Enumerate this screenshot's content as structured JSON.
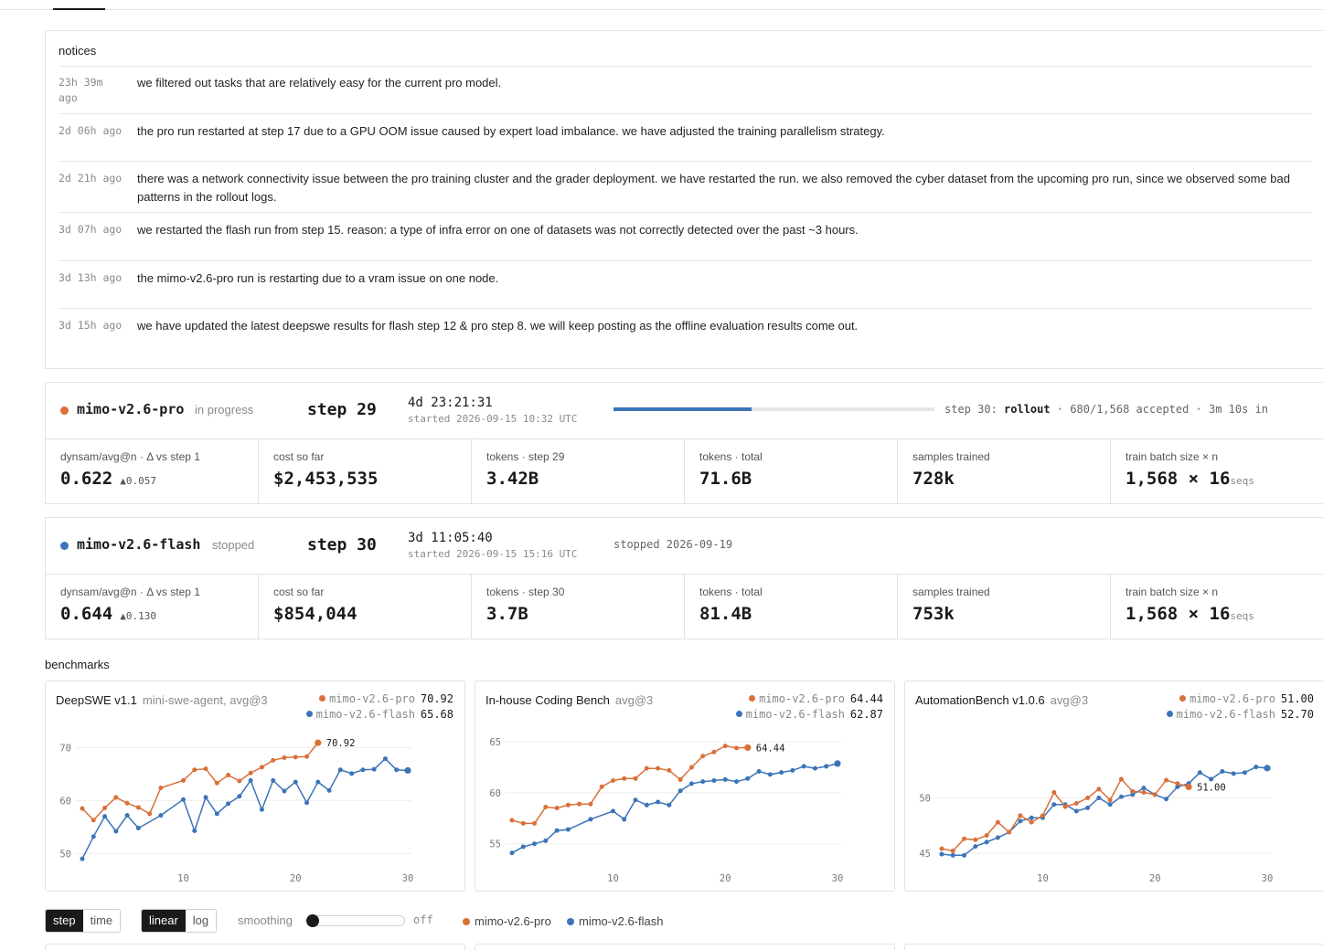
{
  "colors": {
    "pro": "#d9703a",
    "flash": "#3b74b8",
    "border": "#e2e2e2"
  },
  "notices": {
    "title": "notices",
    "items": [
      {
        "time": "23h 39m ago",
        "text": "we filtered out tasks that are relatively easy for the current pro model."
      },
      {
        "time": "2d 06h ago",
        "text": "the pro run restarted at step 17 due to a GPU OOM issue caused by expert load imbalance. we have adjusted the training parallelism strategy."
      },
      {
        "time": "2d 21h ago",
        "text": "there was a network connectivity issue between the pro training cluster and the grader deployment. we have restarted the run. we also removed the cyber dataset from the upcoming pro run, since we observed some bad patterns in the rollout logs."
      },
      {
        "time": "3d 07h ago",
        "text": "we restarted the flash run from step 15. reason: a type of infra error on one of datasets was not correctly detected over the past ~3 hours."
      },
      {
        "time": "3d 13h ago",
        "text": "the mimo-v2.6-pro run is restarting due to a vram issue on one node."
      },
      {
        "time": "3d 15h ago",
        "text": "we have updated the latest deepswe results for flash step 12 & pro step 8. we will keep posting as the offline evaluation results come out."
      }
    ]
  },
  "runs": {
    "pro": {
      "name": "mimo-v2.6-pro",
      "status": "in progress",
      "step": "step 29",
      "elapsed": "4d 23:21:31",
      "started": "started 2026-09-15 10:32 UTC",
      "progress": 0.43,
      "phase_prefix": "step 30:",
      "phase_name": "rollout",
      "phase_suffix": "· 680/1,568 accepted · 3m 10s in",
      "stats": [
        {
          "label": "dynsam/avg@n · Δ vs step 1",
          "value": "0.622",
          "delta": "▲0.057"
        },
        {
          "label": "cost so far",
          "value": "$2,453,535"
        },
        {
          "label": "tokens · step 29",
          "value": "3.42B"
        },
        {
          "label": "tokens · total",
          "value": "71.6B"
        },
        {
          "label": "samples trained",
          "value": "728k"
        },
        {
          "label": "train batch size × n",
          "value": "1,568 × 16",
          "unit": "seqs"
        }
      ]
    },
    "flash": {
      "name": "mimo-v2.6-flash",
      "status": "stopped",
      "step": "step 30",
      "elapsed": "3d 11:05:40",
      "started": "started 2026-09-15 15:16 UTC",
      "stopped": "stopped 2026-09-19",
      "stats": [
        {
          "label": "dynsam/avg@n · Δ vs step 1",
          "value": "0.644",
          "delta": "▲0.130"
        },
        {
          "label": "cost so far",
          "value": "$854,044"
        },
        {
          "label": "tokens · step 30",
          "value": "3.7B"
        },
        {
          "label": "tokens · total",
          "value": "81.4B"
        },
        {
          "label": "samples trained",
          "value": "753k"
        },
        {
          "label": "train batch size × n",
          "value": "1,568 × 16",
          "unit": "seqs"
        }
      ]
    }
  },
  "benchmarks": {
    "title": "benchmarks",
    "controls": {
      "x_mode": [
        "step",
        "time"
      ],
      "x_mode_selected": "step",
      "scale": [
        "linear",
        "log"
      ],
      "scale_selected": "linear",
      "smoothing_label": "smoothing",
      "smoothing_value": "off",
      "smoothing_level": 0,
      "legend": [
        "mimo-v2.6-pro",
        "mimo-v2.6-flash"
      ]
    }
  },
  "chart_data": [
    {
      "type": "line",
      "title": "DeepSWE v1.1",
      "subtitle": "mini-swe-agent, avg@3",
      "xlim": [
        1,
        30
      ],
      "ylim": [
        48,
        73
      ],
      "xticks": [
        10,
        20,
        30
      ],
      "yticks": [
        50,
        60,
        70
      ],
      "end_label": "70.92",
      "series": [
        {
          "name": "mimo-v2.6-pro",
          "final": "70.92",
          "x": [
            1,
            2,
            3,
            4,
            5,
            6,
            7,
            8,
            9,
            10,
            11,
            12,
            13,
            14,
            15,
            16,
            17,
            18,
            19,
            20,
            21,
            22
          ],
          "y": [
            58.5,
            56.3,
            58.6,
            60.6,
            59.5,
            58.7,
            57.5,
            62.4,
            null,
            63.8,
            65.8,
            66,
            63.3,
            64.8,
            63.7,
            65.2,
            66.3,
            67.6,
            68.1,
            68.2,
            68.3,
            70.92
          ]
        },
        {
          "name": "mimo-v2.6-flash",
          "final": "65.68",
          "x": [
            1,
            2,
            3,
            4,
            5,
            6,
            7,
            8,
            9,
            10,
            11,
            12,
            13,
            14,
            15,
            16,
            17,
            18,
            19,
            20,
            21,
            22,
            23,
            24,
            25,
            26,
            27,
            28,
            29,
            30
          ],
          "y": [
            49,
            53.2,
            57,
            54.2,
            57.2,
            54.8,
            null,
            57.2,
            null,
            60.2,
            54.3,
            60.6,
            57.5,
            59.4,
            60.8,
            63.8,
            58.3,
            63.8,
            61.8,
            63.5,
            59.6,
            63.5,
            61.9,
            65.8,
            65.1,
            65.8,
            65.9,
            67.9,
            65.8,
            65.68
          ]
        }
      ]
    },
    {
      "type": "line",
      "title": "In-house Coding Bench",
      "subtitle": "avg@3",
      "xlim": [
        1,
        30
      ],
      "ylim": [
        53,
        66
      ],
      "xticks": [
        10,
        20,
        30
      ],
      "yticks": [
        55,
        60,
        65
      ],
      "end_label": "64.44",
      "series": [
        {
          "name": "mimo-v2.6-pro",
          "final": "64.44",
          "x": [
            1,
            2,
            3,
            4,
            5,
            6,
            7,
            8,
            9,
            10,
            11,
            12,
            13,
            14,
            15,
            16,
            17,
            18,
            19,
            20,
            21,
            22
          ],
          "y": [
            57.3,
            57,
            57,
            58.6,
            58.5,
            58.8,
            58.9,
            58.9,
            60.6,
            61.2,
            61.4,
            61.4,
            62.4,
            62.4,
            62.2,
            61.3,
            62.5,
            63.6,
            64,
            64.6,
            64.4,
            64.44
          ]
        },
        {
          "name": "mimo-v2.6-flash",
          "final": "62.87",
          "x": [
            1,
            2,
            3,
            4,
            5,
            6,
            7,
            8,
            9,
            10,
            11,
            12,
            13,
            14,
            15,
            16,
            17,
            18,
            19,
            20,
            21,
            22,
            23,
            24,
            25,
            26,
            27,
            28,
            29,
            30
          ],
          "y": [
            54.1,
            54.7,
            55,
            55.3,
            56.3,
            56.4,
            null,
            57.4,
            null,
            58.2,
            57.4,
            59.3,
            58.8,
            59.1,
            58.8,
            60.2,
            60.9,
            61.1,
            61.2,
            61.3,
            61.1,
            61.4,
            62.1,
            61.8,
            62,
            62.2,
            62.6,
            62.4,
            62.6,
            62.87
          ]
        }
      ]
    },
    {
      "type": "line",
      "title": "AutomationBench v1.0.6",
      "subtitle": "avg@3",
      "xlim": [
        1,
        30
      ],
      "ylim": [
        44,
        56
      ],
      "xticks": [
        10,
        20,
        30
      ],
      "yticks": [
        45,
        50
      ],
      "end_label": "51.00",
      "series": [
        {
          "name": "mimo-v2.6-pro",
          "final": "51.00",
          "x": [
            1,
            2,
            3,
            4,
            5,
            6,
            7,
            8,
            9,
            10,
            11,
            12,
            13,
            14,
            15,
            16,
            17,
            18,
            19,
            20,
            21,
            22,
            23
          ],
          "y": [
            45.4,
            45.2,
            46.3,
            46.2,
            46.6,
            47.8,
            46.9,
            48.4,
            47.8,
            48.4,
            50.5,
            49.2,
            49.5,
            50,
            50.8,
            49.8,
            51.7,
            50.6,
            50.5,
            50.3,
            51.6,
            51.3,
            51.0
          ]
        },
        {
          "name": "mimo-v2.6-flash",
          "final": "52.70",
          "x": [
            1,
            2,
            3,
            4,
            5,
            6,
            7,
            8,
            9,
            10,
            11,
            12,
            13,
            14,
            15,
            16,
            17,
            18,
            19,
            20,
            21,
            22,
            23,
            24,
            25,
            26,
            27,
            28,
            29,
            30
          ],
          "y": [
            44.9,
            44.8,
            44.8,
            45.6,
            46,
            46.4,
            46.9,
            47.9,
            48.2,
            48.2,
            49.4,
            49.4,
            48.8,
            49.1,
            50,
            49.4,
            50.1,
            50.3,
            50.9,
            50.3,
            49.9,
            51,
            51.3,
            52.3,
            51.7,
            52.4,
            52.2,
            52.3,
            52.8,
            52.7
          ]
        }
      ]
    }
  ]
}
